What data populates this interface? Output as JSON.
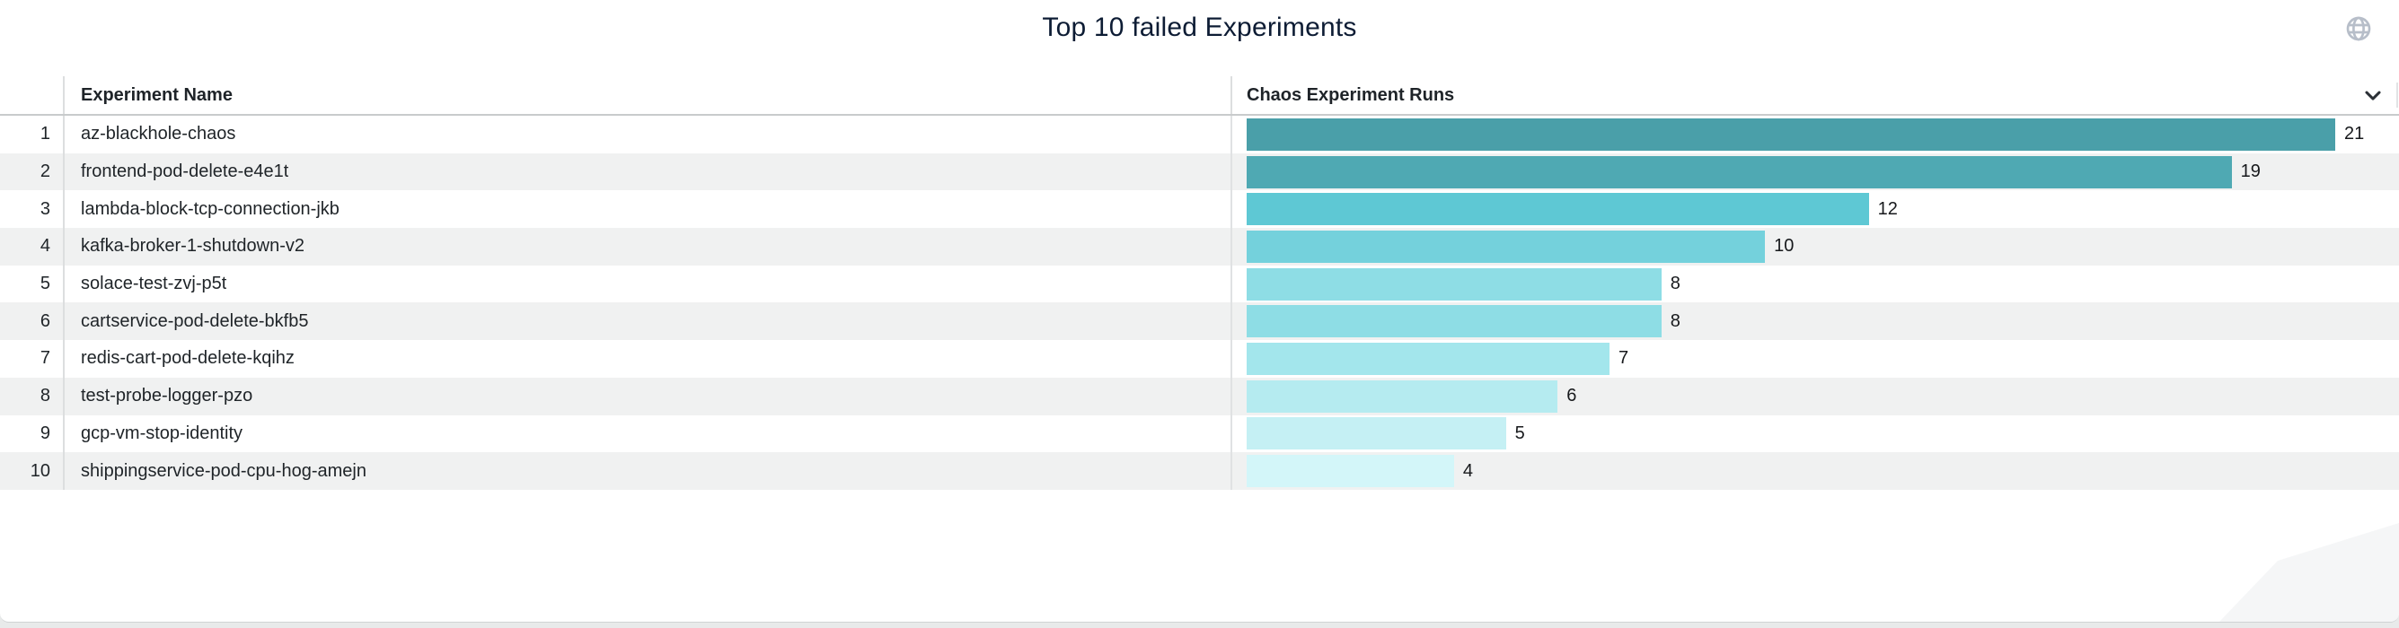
{
  "table": {
    "name_header": "Experiment Name",
    "runs_header": "Chaos Experiment Runs"
  },
  "icons": {
    "top_right": "globe-icon",
    "runs_header_control": "chevron-down-icon"
  },
  "colors": {
    "title": "#0d1c34",
    "header_text": "#1e2328",
    "row_text": "#1f2428",
    "row_alt_background": "#f0f1f1",
    "divider": "#dcdedf",
    "header_border": "#c8cbcc"
  },
  "chart_data": {
    "type": "bar",
    "orientation": "horizontal",
    "title": "Top 10 failed Experiments",
    "ranks": [
      "1",
      "2",
      "3",
      "4",
      "5",
      "6",
      "7",
      "8",
      "9",
      "10"
    ],
    "categories": [
      "az-blackhole-chaos",
      "frontend-pod-delete-e4e1t",
      "lambda-block-tcp-connection-jkb",
      "kafka-broker-1-shutdown-v2",
      "solace-test-zvj-p5t",
      "cartservice-pod-delete-bkfb5",
      "redis-cart-pod-delete-kqihz",
      "test-probe-logger-pzo",
      "gcp-vm-stop-identity",
      "shippingservice-pod-cpu-hog-amejn"
    ],
    "values": [
      21,
      19,
      12,
      10,
      8,
      8,
      7,
      6,
      5,
      4
    ],
    "bar_colors": [
      "#4a9fa9",
      "#4fa9b3",
      "#5ec8d4",
      "#74d1dc",
      "#8edde5",
      "#8edde5",
      "#a3e6ec",
      "#b5ebf0",
      "#c5f0f4",
      "#d3f6f9"
    ],
    "xlabel": "Chaos Experiment Runs",
    "ylabel": "Experiment Name",
    "xlim": [
      0,
      21
    ],
    "grid": false,
    "legend": false,
    "value_labels": true
  }
}
